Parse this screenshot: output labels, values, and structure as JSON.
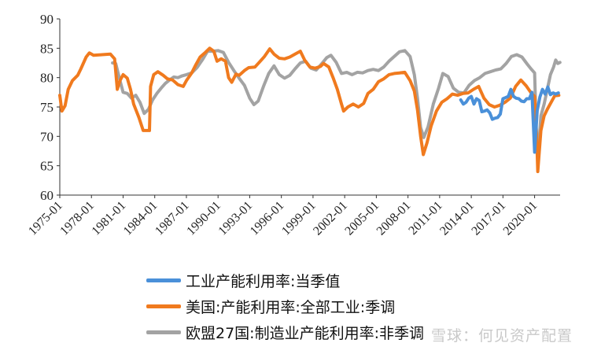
{
  "chart_data": {
    "type": "line",
    "title": "",
    "xlabel": "",
    "ylabel": "",
    "ylim": [
      60,
      90
    ],
    "yticks": [
      "60",
      "65",
      "70",
      "75",
      "80",
      "85",
      "90"
    ],
    "xticks": [
      "1975-01",
      "1978-01",
      "1981-01",
      "1984-01",
      "1987-01",
      "1990-01",
      "1993-01",
      "1996-01",
      "1999-01",
      "2002-01",
      "2005-01",
      "2008-01",
      "2011-01",
      "2014-01",
      "2017-01",
      "2020-01"
    ],
    "x_start": "1975-01",
    "x_end": "2022-06",
    "legend_position": "bottom",
    "grid": false,
    "series": [
      {
        "name": "工业产能利用率:当季值",
        "color": "#4a90d9",
        "points": [
          [
            2013.0,
            76.2
          ],
          [
            2013.25,
            75.5
          ],
          [
            2013.5,
            75.8
          ],
          [
            2013.75,
            76.5
          ],
          [
            2014.0,
            76.8
          ],
          [
            2014.25,
            75.5
          ],
          [
            2014.5,
            76.4
          ],
          [
            2014.75,
            76.1
          ],
          [
            2015.0,
            74.2
          ],
          [
            2015.25,
            74.3
          ],
          [
            2015.5,
            74.5
          ],
          [
            2015.75,
            74.0
          ],
          [
            2016.0,
            72.9
          ],
          [
            2016.25,
            73.1
          ],
          [
            2016.5,
            73.2
          ],
          [
            2016.75,
            73.8
          ],
          [
            2017.0,
            76.4
          ],
          [
            2017.25,
            76.6
          ],
          [
            2017.5,
            76.8
          ],
          [
            2017.75,
            78.0
          ],
          [
            2018.0,
            76.8
          ],
          [
            2018.25,
            76.5
          ],
          [
            2018.5,
            76.4
          ],
          [
            2018.75,
            76.0
          ],
          [
            2019.0,
            75.9
          ],
          [
            2019.25,
            76.4
          ],
          [
            2019.5,
            76.4
          ],
          [
            2019.75,
            77.5
          ],
          [
            2020.0,
            67.3
          ],
          [
            2020.25,
            74.4
          ],
          [
            2020.5,
            76.7
          ],
          [
            2020.75,
            78.0
          ],
          [
            2021.0,
            77.2
          ],
          [
            2021.25,
            78.4
          ],
          [
            2021.5,
            77.1
          ],
          [
            2021.75,
            77.4
          ],
          [
            2022.0,
            77.2
          ],
          [
            2022.25,
            77.4
          ]
        ]
      },
      {
        "name": "美国:产能利用率:全部工业:季调",
        "color": "#f07a1e",
        "points": [
          [
            1975.0,
            77.0
          ],
          [
            1975.2,
            74.3
          ],
          [
            1975.5,
            75.2
          ],
          [
            1975.8,
            78.0
          ],
          [
            1976.2,
            79.5
          ],
          [
            1976.7,
            80.4
          ],
          [
            1977.0,
            81.5
          ],
          [
            1977.5,
            83.5
          ],
          [
            1977.8,
            84.2
          ],
          [
            1978.2,
            83.8
          ],
          [
            1979.0,
            83.9
          ],
          [
            1979.8,
            84.0
          ],
          [
            1980.2,
            83.2
          ],
          [
            1980.45,
            78.0
          ],
          [
            1980.7,
            79.5
          ],
          [
            1981.0,
            80.5
          ],
          [
            1981.4,
            79.9
          ],
          [
            1981.7,
            78.0
          ],
          [
            1982.0,
            75.5
          ],
          [
            1982.5,
            73.2
          ],
          [
            1982.9,
            71.0
          ],
          [
            1983.5,
            71.0
          ],
          [
            1983.6,
            78.5
          ],
          [
            1983.9,
            80.5
          ],
          [
            1984.3,
            81.0
          ],
          [
            1984.8,
            80.4
          ],
          [
            1985.2,
            79.8
          ],
          [
            1985.7,
            79.6
          ],
          [
            1986.2,
            78.8
          ],
          [
            1986.7,
            78.5
          ],
          [
            1987.0,
            79.5
          ],
          [
            1987.5,
            80.8
          ],
          [
            1987.9,
            82.2
          ],
          [
            1988.3,
            83.5
          ],
          [
            1988.8,
            84.3
          ],
          [
            1989.2,
            85.0
          ],
          [
            1989.6,
            84.5
          ],
          [
            1989.9,
            82.8
          ],
          [
            1990.3,
            83.2
          ],
          [
            1990.7,
            82.8
          ],
          [
            1991.0,
            80.0
          ],
          [
            1991.3,
            79.2
          ],
          [
            1991.7,
            80.6
          ],
          [
            1992.0,
            80.4
          ],
          [
            1992.5,
            81.2
          ],
          [
            1992.9,
            81.7
          ],
          [
            1993.5,
            81.8
          ],
          [
            1993.9,
            82.6
          ],
          [
            1994.4,
            83.6
          ],
          [
            1994.9,
            84.9
          ],
          [
            1995.3,
            84.0
          ],
          [
            1995.8,
            83.3
          ],
          [
            1996.3,
            83.2
          ],
          [
            1996.8,
            83.5
          ],
          [
            1997.3,
            84.0
          ],
          [
            1997.8,
            84.5
          ],
          [
            1998.2,
            83.0
          ],
          [
            1998.7,
            81.8
          ],
          [
            1999.2,
            81.6
          ],
          [
            1999.7,
            81.9
          ],
          [
            2000.0,
            82.4
          ],
          [
            2000.5,
            81.8
          ],
          [
            2000.9,
            80.0
          ],
          [
            2001.3,
            78.0
          ],
          [
            2001.7,
            75.5
          ],
          [
            2001.9,
            74.3
          ],
          [
            2002.3,
            75.0
          ],
          [
            2002.8,
            75.5
          ],
          [
            2003.3,
            75.0
          ],
          [
            2003.8,
            75.6
          ],
          [
            2004.2,
            77.3
          ],
          [
            2004.7,
            78.0
          ],
          [
            2005.2,
            79.3
          ],
          [
            2005.7,
            79.8
          ],
          [
            2006.2,
            80.5
          ],
          [
            2006.7,
            80.7
          ],
          [
            2007.2,
            80.8
          ],
          [
            2007.7,
            80.9
          ],
          [
            2008.2,
            79.5
          ],
          [
            2008.6,
            77.7
          ],
          [
            2008.9,
            74.5
          ],
          [
            2009.2,
            70.0
          ],
          [
            2009.45,
            66.9
          ],
          [
            2009.8,
            68.9
          ],
          [
            2010.2,
            71.8
          ],
          [
            2010.7,
            74.3
          ],
          [
            2011.2,
            75.8
          ],
          [
            2011.7,
            76.4
          ],
          [
            2012.2,
            77.2
          ],
          [
            2012.7,
            77.0
          ],
          [
            2013.2,
            77.3
          ],
          [
            2013.7,
            77.4
          ],
          [
            2014.2,
            78.0
          ],
          [
            2014.7,
            78.5
          ],
          [
            2015.2,
            76.5
          ],
          [
            2015.7,
            75.4
          ],
          [
            2016.2,
            75.0
          ],
          [
            2016.7,
            75.3
          ],
          [
            2017.2,
            75.8
          ],
          [
            2017.7,
            76.5
          ],
          [
            2018.2,
            78.5
          ],
          [
            2018.7,
            79.6
          ],
          [
            2019.2,
            78.6
          ],
          [
            2019.7,
            77.3
          ],
          [
            2020.0,
            76.8
          ],
          [
            2020.2,
            69.5
          ],
          [
            2020.3,
            64.0
          ],
          [
            2020.6,
            71.0
          ],
          [
            2020.9,
            73.5
          ],
          [
            2021.2,
            74.6
          ],
          [
            2021.6,
            75.9
          ],
          [
            2021.9,
            76.9
          ],
          [
            2022.3,
            77.0
          ]
        ]
      },
      {
        "name": "欧盟27国:制造业产能利用率:非季调",
        "color": "#a3a3a3",
        "points": [
          [
            1980.0,
            82.5
          ],
          [
            1980.3,
            82.4
          ],
          [
            1980.7,
            79.5
          ],
          [
            1981.0,
            77.5
          ],
          [
            1981.4,
            77.3
          ],
          [
            1981.8,
            76.5
          ],
          [
            1982.2,
            77.0
          ],
          [
            1982.6,
            75.8
          ],
          [
            1983.0,
            73.9
          ],
          [
            1983.4,
            74.6
          ],
          [
            1983.8,
            76.2
          ],
          [
            1984.2,
            77.3
          ],
          [
            1984.6,
            78.2
          ],
          [
            1985.0,
            79.0
          ],
          [
            1985.4,
            79.6
          ],
          [
            1985.8,
            80.1
          ],
          [
            1986.2,
            80.0
          ],
          [
            1986.6,
            80.3
          ],
          [
            1987.0,
            80.5
          ],
          [
            1987.5,
            80.8
          ],
          [
            1988.0,
            81.7
          ],
          [
            1988.5,
            83.0
          ],
          [
            1989.0,
            84.5
          ],
          [
            1989.5,
            84.5
          ],
          [
            1990.0,
            84.6
          ],
          [
            1990.5,
            84.3
          ],
          [
            1991.0,
            82.6
          ],
          [
            1991.5,
            81.2
          ],
          [
            1992.0,
            79.9
          ],
          [
            1992.5,
            78.7
          ],
          [
            1993.0,
            76.5
          ],
          [
            1993.4,
            75.4
          ],
          [
            1993.8,
            76.0
          ],
          [
            1994.3,
            78.5
          ],
          [
            1994.8,
            80.7
          ],
          [
            1995.3,
            82.0
          ],
          [
            1995.8,
            80.5
          ],
          [
            1996.3,
            79.9
          ],
          [
            1996.8,
            80.4
          ],
          [
            1997.3,
            81.5
          ],
          [
            1997.8,
            82.5
          ],
          [
            1998.3,
            82.8
          ],
          [
            1998.8,
            81.6
          ],
          [
            1999.3,
            81.3
          ],
          [
            1999.8,
            82.3
          ],
          [
            2000.3,
            83.4
          ],
          [
            2000.7,
            83.8
          ],
          [
            2001.2,
            82.6
          ],
          [
            2001.7,
            80.7
          ],
          [
            2002.2,
            80.9
          ],
          [
            2002.7,
            80.5
          ],
          [
            2003.2,
            80.9
          ],
          [
            2003.7,
            80.8
          ],
          [
            2004.2,
            81.2
          ],
          [
            2004.7,
            81.4
          ],
          [
            2005.2,
            81.2
          ],
          [
            2005.7,
            81.8
          ],
          [
            2006.2,
            82.8
          ],
          [
            2006.7,
            83.6
          ],
          [
            2007.2,
            84.4
          ],
          [
            2007.7,
            84.6
          ],
          [
            2008.2,
            83.6
          ],
          [
            2008.6,
            80.5
          ],
          [
            2008.9,
            76.5
          ],
          [
            2009.2,
            71.5
          ],
          [
            2009.5,
            69.8
          ],
          [
            2009.9,
            71.6
          ],
          [
            2010.4,
            75.5
          ],
          [
            2010.9,
            78.2
          ],
          [
            2011.3,
            80.7
          ],
          [
            2011.8,
            80.2
          ],
          [
            2012.3,
            78.2
          ],
          [
            2012.8,
            77.5
          ],
          [
            2013.3,
            77.4
          ],
          [
            2013.8,
            78.7
          ],
          [
            2014.3,
            79.5
          ],
          [
            2014.8,
            80.0
          ],
          [
            2015.3,
            80.7
          ],
          [
            2015.8,
            81.0
          ],
          [
            2016.3,
            81.3
          ],
          [
            2016.8,
            81.5
          ],
          [
            2017.3,
            82.4
          ],
          [
            2017.8,
            83.6
          ],
          [
            2018.3,
            83.9
          ],
          [
            2018.8,
            83.5
          ],
          [
            2019.3,
            82.3
          ],
          [
            2019.7,
            81.4
          ],
          [
            2020.0,
            80.8
          ],
          [
            2020.2,
            68.5
          ],
          [
            2020.35,
            67.3
          ],
          [
            2020.6,
            73.5
          ],
          [
            2020.9,
            75.5
          ],
          [
            2021.2,
            78.0
          ],
          [
            2021.5,
            80.5
          ],
          [
            2021.8,
            81.8
          ],
          [
            2022.0,
            83.0
          ],
          [
            2022.2,
            82.4
          ],
          [
            2022.4,
            82.6
          ]
        ]
      }
    ]
  },
  "watermark": "雪球：何见资产配置"
}
